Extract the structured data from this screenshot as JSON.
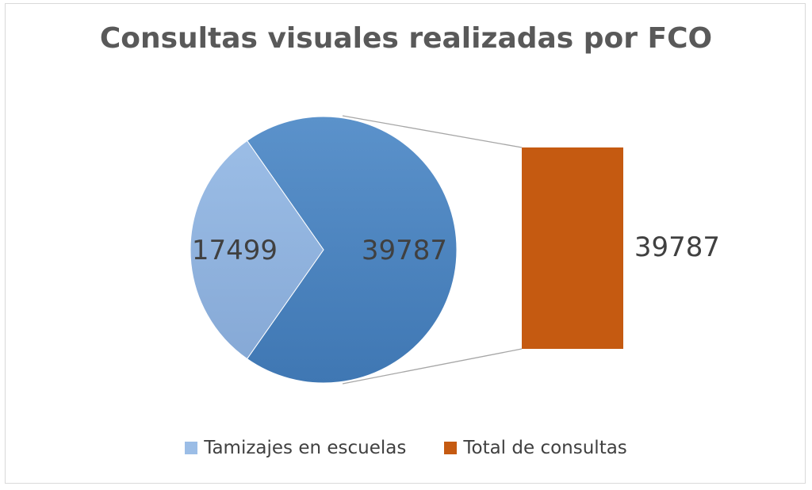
{
  "chart_data": {
    "type": "bar-of-pie",
    "title": "Consultas visuales realizadas por FCO",
    "slices": [
      {
        "name": "Tamizajes en escuelas",
        "value": 17499,
        "color": "#9bbde6",
        "color_dark": "#86a9d6"
      },
      {
        "name": "Total de consultas",
        "value": 39787,
        "color": "#5b92cb",
        "color_dark": "#3f77b3"
      }
    ],
    "bar": {
      "value": 39787,
      "color": "#c55a11"
    },
    "legend": [
      {
        "name": "Tamizajes en escuelas",
        "color": "#9bbde6"
      },
      {
        "name": "Total de consultas",
        "color": "#c55a11"
      }
    ],
    "legend_position": "bottom",
    "data_labels": {
      "slice_small": "17499",
      "slice_large": "39787",
      "bar": "39787"
    }
  }
}
